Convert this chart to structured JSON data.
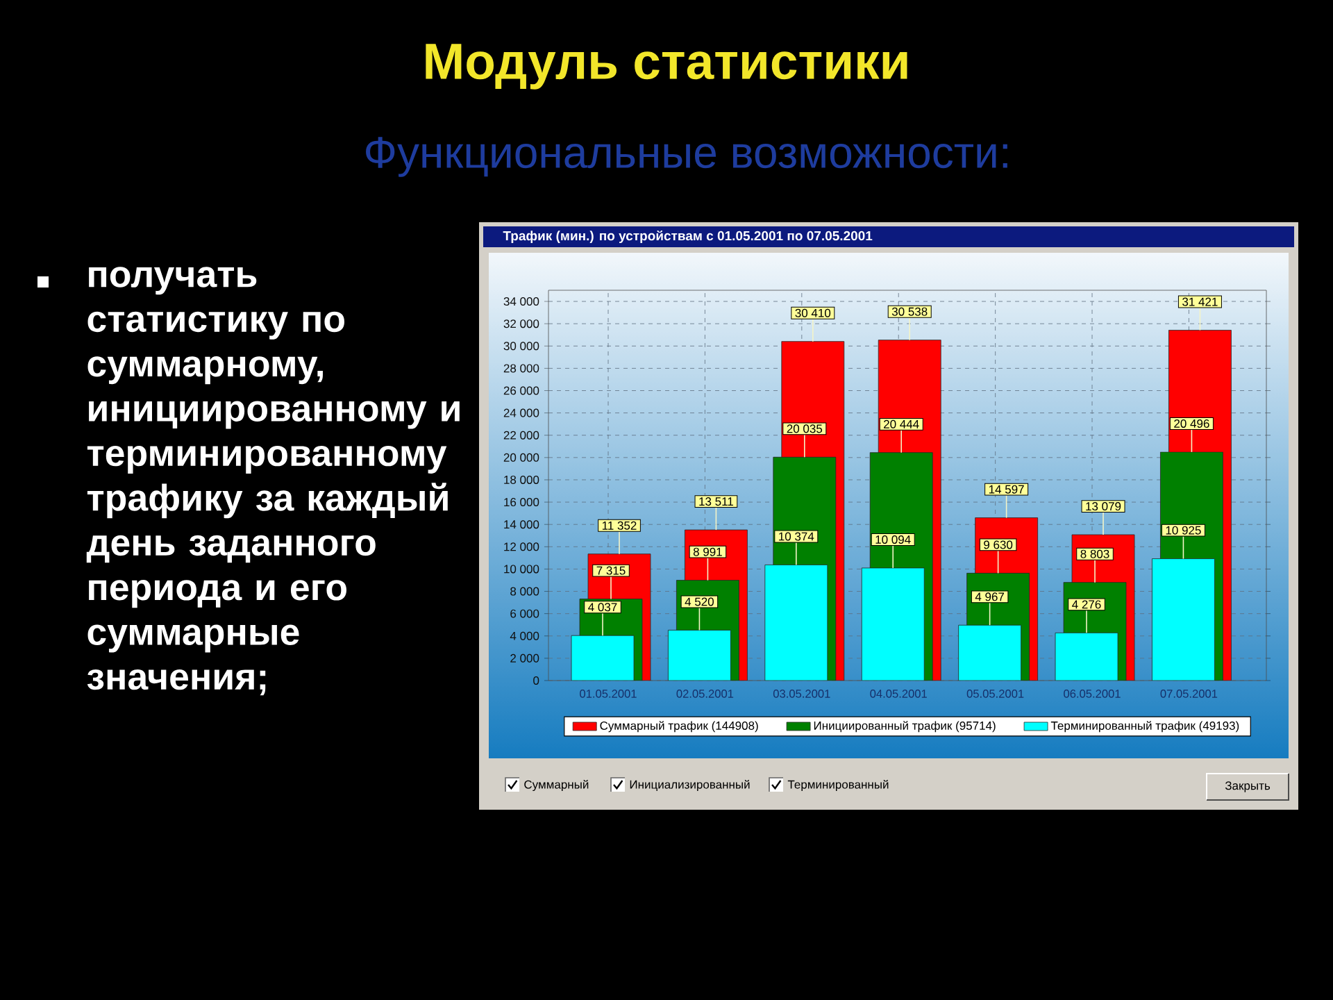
{
  "chart_data": {
    "type": "bar",
    "title": "Модуль статистики",
    "subtitle": "Функциональные возможности:",
    "categories": [
      "01.05.2001",
      "02.05.2001",
      "03.05.2001",
      "04.05.2001",
      "05.05.2001",
      "06.05.2001",
      "07.05.2001"
    ],
    "series": [
      {
        "name": "Суммарный трафик (144908)",
        "color": "#ff0000",
        "values": [
          11352,
          13511,
          30410,
          30538,
          14597,
          13079,
          31421
        ],
        "value_labels": [
          "11 352",
          "13 511",
          "30 410",
          "30 538",
          "14 597",
          "13 079",
          "31 421"
        ]
      },
      {
        "name": "Инициированный трафик (95714)",
        "color": "#008000",
        "values": [
          7315,
          8991,
          20035,
          20444,
          9630,
          8803,
          20496
        ],
        "value_labels": [
          "7 315",
          "8 991",
          "20 035",
          "20 444",
          "9 630",
          "8 803",
          "20 496"
        ]
      },
      {
        "name": "Терминированный трафик (49193)",
        "color": "#00ffff",
        "values": [
          4037,
          4520,
          10374,
          10094,
          4967,
          4276,
          10925
        ],
        "value_labels": [
          "4 037",
          "4 520",
          "10 374",
          "10 094",
          "4 967",
          "4 276",
          "10 925"
        ]
      }
    ],
    "ylim": [
      0,
      35000
    ],
    "yticks": [
      0,
      {
        "value": 2000,
        "label": "2 000"
      },
      {
        "value": 4000,
        "label": "4 000"
      },
      {
        "value": 6000,
        "label": "6 000"
      },
      {
        "value": 8000,
        "label": "8 000"
      },
      {
        "value": 10000,
        "label": "10 000"
      },
      {
        "value": 12000,
        "label": "12 000"
      },
      {
        "value": 14000,
        "label": "14 000"
      },
      {
        "value": 16000,
        "label": "16 000"
      },
      {
        "value": 18000,
        "label": "18 000"
      },
      {
        "value": 20000,
        "label": "20 000"
      },
      {
        "value": 22000,
        "label": "22 000"
      },
      {
        "value": 24000,
        "label": "24 000"
      },
      {
        "value": 26000,
        "label": "26 000"
      },
      {
        "value": 28000,
        "label": "28 000"
      },
      {
        "value": 30000,
        "label": "30 000"
      },
      {
        "value": 32000,
        "label": "32 000"
      },
      {
        "value": 34000,
        "label": "34 000"
      }
    ],
    "grid": true,
    "legend": "bottom",
    "annotations": [
      "Трафик (мин.) по устройствам с 01.05.2001 по 07.05.2001",
      "получать статистику по суммарному, инициированному и терминированному трафику за каждый день заданного периода и его суммарные значения;",
      "Суммарный",
      "Инициализированный",
      "Терминированный",
      "Закрыть"
    ]
  }
}
